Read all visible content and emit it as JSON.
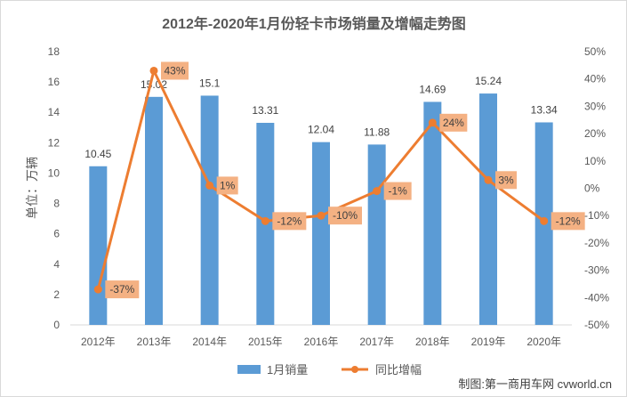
{
  "chart_data": {
    "type": "bar",
    "title": "2012年-2020年1月份轻卡市场销量及增幅走势图",
    "ylabel": "单位：万辆",
    "categories": [
      "2012年",
      "2013年",
      "2014年",
      "2015年",
      "2016年",
      "2017年",
      "2018年",
      "2019年",
      "2020年"
    ],
    "series": [
      {
        "name": "1月销量",
        "type": "bar",
        "axis": "left",
        "values": [
          10.45,
          15.02,
          15.1,
          13.31,
          12.04,
          11.88,
          14.69,
          15.24,
          13.34
        ],
        "labels": [
          "10.45",
          "15.02",
          "15.1",
          "13.31",
          "12.04",
          "11.88",
          "14.69",
          "15.24",
          "13.34"
        ],
        "color": "#5b9bd5"
      },
      {
        "name": "同比增幅",
        "type": "line",
        "axis": "right",
        "values": [
          -37,
          43,
          1,
          -12,
          -10,
          -1,
          24,
          3,
          -12
        ],
        "labels": [
          "-37%",
          "43%",
          "1%",
          "-12%",
          "-10%",
          "-1%",
          "24%",
          "3%",
          "-12%"
        ],
        "color": "#ed7d31",
        "label_bg": "#f4b183"
      }
    ],
    "ylim": [
      0,
      18
    ],
    "y_ticks": [
      "0",
      "2",
      "4",
      "6",
      "8",
      "10",
      "12",
      "14",
      "16",
      "18"
    ],
    "y2lim": [
      -50,
      50
    ],
    "y2_ticks": [
      "-50%",
      "-40%",
      "-30%",
      "-20%",
      "-10%",
      "0%",
      "10%",
      "20%",
      "30%",
      "40%",
      "50%"
    ],
    "grid": false,
    "legend": "bottom"
  },
  "credit": "制图:第一商用车网 cvworld.cn"
}
